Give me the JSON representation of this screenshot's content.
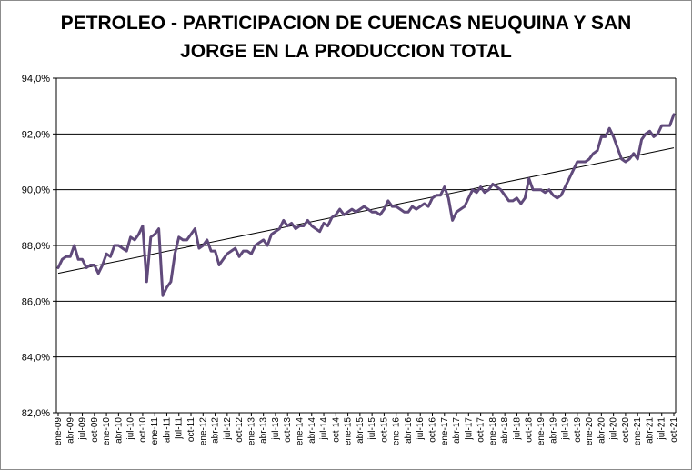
{
  "chart_data": {
    "type": "line",
    "title_line1": "PETROLEO - PARTICIPACION DE CUENCAS NEUQUINA Y SAN",
    "title_line2": "JORGE EN LA PRODUCCION TOTAL",
    "ylim": [
      82,
      94
    ],
    "y_ticks": [
      "82,0%",
      "84,0%",
      "86,0%",
      "88,0%",
      "90,0%",
      "92,0%",
      "94,0%"
    ],
    "grid": true,
    "legend": "none",
    "x_labels": [
      "ene-09",
      "abr-09",
      "jul-09",
      "oct-09",
      "ene-10",
      "abr-10",
      "jul-10",
      "oct-10",
      "ene-11",
      "abr-11",
      "jul-11",
      "oct-11",
      "ene-12",
      "abr-12",
      "jul-12",
      "oct-12",
      "ene-13",
      "abr-13",
      "jul-13",
      "oct-13",
      "ene-14",
      "abr-14",
      "jul-14",
      "oct-14",
      "ene-15",
      "abr-15",
      "jul-15",
      "oct-15",
      "ene-16",
      "abr-16",
      "jul-16",
      "oct-16",
      "ene-17",
      "abr-17",
      "jul-17",
      "oct-17",
      "ene-18",
      "abr-18",
      "jul-18",
      "oct-18",
      "ene-19",
      "abr-19",
      "jul-19",
      "oct-19",
      "ene-20",
      "abr-20",
      "jul-20",
      "oct-20",
      "ene-21",
      "abr-21",
      "jul-21",
      "oct-21"
    ],
    "series": [
      {
        "color": "#604a7b",
        "values": [
          87.2,
          87.5,
          87.6,
          87.6,
          88.0,
          87.5,
          87.5,
          87.2,
          87.3,
          87.3,
          87.0,
          87.3,
          87.7,
          87.6,
          88.0,
          88.0,
          87.9,
          87.8,
          88.3,
          88.2,
          88.4,
          88.7,
          86.7,
          88.3,
          88.4,
          88.6,
          86.2,
          86.5,
          86.7,
          87.7,
          88.3,
          88.2,
          88.2,
          88.4,
          88.6,
          87.9,
          88.0,
          88.2,
          87.8,
          87.8,
          87.3,
          87.5,
          87.7,
          87.8,
          87.9,
          87.6,
          87.8,
          87.8,
          87.7,
          88.0,
          88.1,
          88.2,
          88.0,
          88.4,
          88.5,
          88.6,
          88.9,
          88.7,
          88.8,
          88.6,
          88.7,
          88.7,
          88.9,
          88.7,
          88.6,
          88.5,
          88.8,
          88.7,
          89.0,
          89.1,
          89.3,
          89.1,
          89.2,
          89.3,
          89.2,
          89.3,
          89.4,
          89.3,
          89.2,
          89.2,
          89.1,
          89.3,
          89.6,
          89.4,
          89.4,
          89.3,
          89.2,
          89.2,
          89.4,
          89.3,
          89.4,
          89.5,
          89.4,
          89.7,
          89.8,
          89.8,
          90.1,
          89.7,
          88.9,
          89.2,
          89.3,
          89.4,
          89.7,
          90.0,
          89.9,
          90.1,
          89.9,
          90.0,
          90.2,
          90.1,
          90.0,
          89.8,
          89.6,
          89.6,
          89.7,
          89.5,
          89.7,
          90.4,
          90.0,
          90.0,
          90.0,
          89.9,
          90.0,
          89.8,
          89.7,
          89.8,
          90.1,
          90.4,
          90.7,
          91.0,
          91.0,
          91.0,
          91.1,
          91.3,
          91.4,
          91.9,
          91.9,
          92.2,
          91.9,
          91.5,
          91.1,
          91.0,
          91.1,
          91.3,
          91.1,
          91.8,
          92.0,
          92.1,
          91.9,
          92.0,
          92.3,
          92.3,
          92.3,
          92.7
        ]
      }
    ],
    "trendline": {
      "color": "#000000",
      "start": 87.0,
      "end": 91.5
    }
  }
}
